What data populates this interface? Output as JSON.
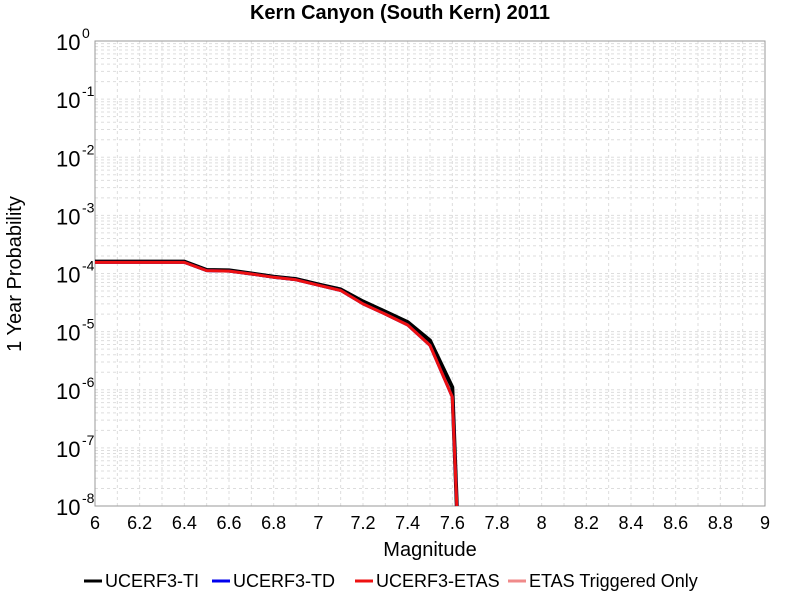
{
  "chart_data": {
    "type": "line",
    "title": "Kern Canyon (South Kern) 2011",
    "xlabel": "Magnitude",
    "ylabel": "1 Year Probability",
    "xlim": [
      6,
      9
    ],
    "ylim": [
      1e-08,
      1
    ],
    "yscale": "log",
    "grid": true,
    "legend_placement": "bottom",
    "x_ticks": [
      "6",
      "6.2",
      "6.4",
      "6.6",
      "6.8",
      "7",
      "7.2",
      "7.4",
      "7.6",
      "7.8",
      "8",
      "8.2",
      "8.4",
      "8.6",
      "8.8",
      "9"
    ],
    "y_ticks": [
      {
        "base": "10",
        "exp": "0"
      },
      {
        "base": "10",
        "exp": "-1"
      },
      {
        "base": "10",
        "exp": "-2"
      },
      {
        "base": "10",
        "exp": "-3"
      },
      {
        "base": "10",
        "exp": "-4"
      },
      {
        "base": "10",
        "exp": "-5"
      },
      {
        "base": "10",
        "exp": "-6"
      },
      {
        "base": "10",
        "exp": "-7"
      },
      {
        "base": "10",
        "exp": "-8"
      }
    ],
    "series": [
      {
        "name": "UCERF3-TI",
        "color": "#000000",
        "x": [
          6.0,
          6.1,
          6.2,
          6.3,
          6.4,
          6.5,
          6.6,
          6.7,
          6.8,
          6.9,
          7.0,
          7.1,
          7.2,
          7.3,
          7.4,
          7.5,
          7.6,
          7.62
        ],
        "y": [
          0.00016,
          0.00016,
          0.00016,
          0.00016,
          0.00016,
          0.000115,
          0.000113,
          0.0001,
          8.8e-05,
          8e-05,
          6.5e-05,
          5.3e-05,
          3.3e-05,
          2.2e-05,
          1.45e-05,
          7e-06,
          1.1e-06,
          1e-08
        ]
      },
      {
        "name": "UCERF3-TD",
        "color": "#0000ee",
        "x": [
          6.0,
          6.1,
          6.2,
          6.3,
          6.4,
          6.5,
          6.6,
          6.7,
          6.8,
          6.9,
          7.0,
          7.1,
          7.2,
          7.3,
          7.4,
          7.5,
          7.6,
          7.62
        ],
        "y": [
          0.000155,
          0.000155,
          0.000155,
          0.000155,
          0.000155,
          0.000112,
          0.00011,
          9.8e-05,
          8.6e-05,
          7.8e-05,
          6.3e-05,
          5.1e-05,
          3e-05,
          2e-05,
          1.3e-05,
          5.8e-06,
          7.5e-07,
          1e-08
        ]
      },
      {
        "name": "UCERF3-ETAS",
        "color": "#ee1111",
        "x": [
          6.0,
          6.1,
          6.2,
          6.3,
          6.4,
          6.5,
          6.6,
          6.7,
          6.8,
          6.9,
          7.0,
          7.1,
          7.2,
          7.3,
          7.4,
          7.5,
          7.6,
          7.62
        ],
        "y": [
          0.000155,
          0.000155,
          0.000155,
          0.000155,
          0.000155,
          0.000112,
          0.00011,
          9.8e-05,
          8.6e-05,
          7.8e-05,
          6.3e-05,
          5.1e-05,
          3e-05,
          2e-05,
          1.3e-05,
          5.8e-06,
          7.5e-07,
          1e-08
        ]
      },
      {
        "name": "ETAS Triggered Only",
        "color": "#f08a8a",
        "x": [],
        "y": []
      }
    ]
  }
}
